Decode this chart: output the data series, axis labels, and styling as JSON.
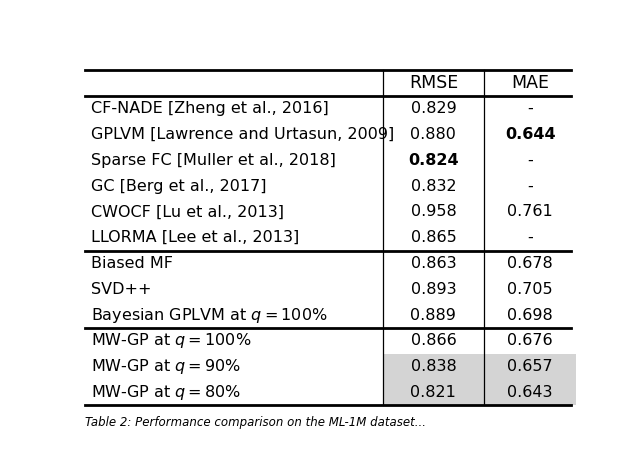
{
  "col_headers": [
    "",
    "RMSE",
    "MAE"
  ],
  "sections": [
    {
      "rows": [
        {
          "label": "CF-NADE [Zheng et al., 2016]",
          "rmse": "0.829",
          "mae": "-",
          "rmse_bold": false,
          "mae_bold": false,
          "highlight": false
        },
        {
          "label": "GPLVM [Lawrence and Urtasun, 2009]",
          "rmse": "0.880",
          "mae": "0.644",
          "rmse_bold": false,
          "mae_bold": true,
          "highlight": false
        },
        {
          "label": "Sparse FC [Muller et al., 2018]",
          "rmse": "0.824",
          "mae": "-",
          "rmse_bold": true,
          "mae_bold": false,
          "highlight": false
        },
        {
          "label": "GC [Berg et al., 2017]",
          "rmse": "0.832",
          "mae": "-",
          "rmse_bold": false,
          "mae_bold": false,
          "highlight": false
        },
        {
          "label": "CWOCF [Lu et al., 2013]",
          "rmse": "0.958",
          "mae": "0.761",
          "rmse_bold": false,
          "mae_bold": false,
          "highlight": false
        },
        {
          "label": "LLORMA [Lee et al., 2013]",
          "rmse": "0.865",
          "mae": "-",
          "rmse_bold": false,
          "mae_bold": false,
          "highlight": false
        }
      ]
    },
    {
      "rows": [
        {
          "label": "Biased MF",
          "rmse": "0.863",
          "mae": "0.678",
          "rmse_bold": false,
          "mae_bold": false,
          "highlight": false
        },
        {
          "label": "SVD++",
          "rmse": "0.893",
          "mae": "0.705",
          "rmse_bold": false,
          "mae_bold": false,
          "highlight": false
        },
        {
          "label": "Bayesian GPLVM at $q = 100\\%$",
          "rmse": "0.889",
          "mae": "0.698",
          "rmse_bold": false,
          "mae_bold": false,
          "highlight": false
        }
      ]
    },
    {
      "rows": [
        {
          "label": "MW-GP at $q = 100\\%$",
          "rmse": "0.866",
          "mae": "0.676",
          "rmse_bold": false,
          "mae_bold": false,
          "highlight": false
        },
        {
          "label": "MW-GP at $q = 90\\%$",
          "rmse": "0.838",
          "mae": "0.657",
          "rmse_bold": false,
          "mae_bold": false,
          "highlight": true
        },
        {
          "label": "MW-GP at $q = 80\\%$",
          "rmse": "0.821",
          "mae": "0.643",
          "rmse_bold": false,
          "mae_bold": false,
          "highlight": true
        }
      ]
    }
  ],
  "highlight_color": "#d4d4d4",
  "bg_color": "#ffffff",
  "text_color": "#000000",
  "font_size": 11.5,
  "header_font_size": 12.5,
  "caption": "Table 2: Performance comparison on the ML-1M dataset..."
}
